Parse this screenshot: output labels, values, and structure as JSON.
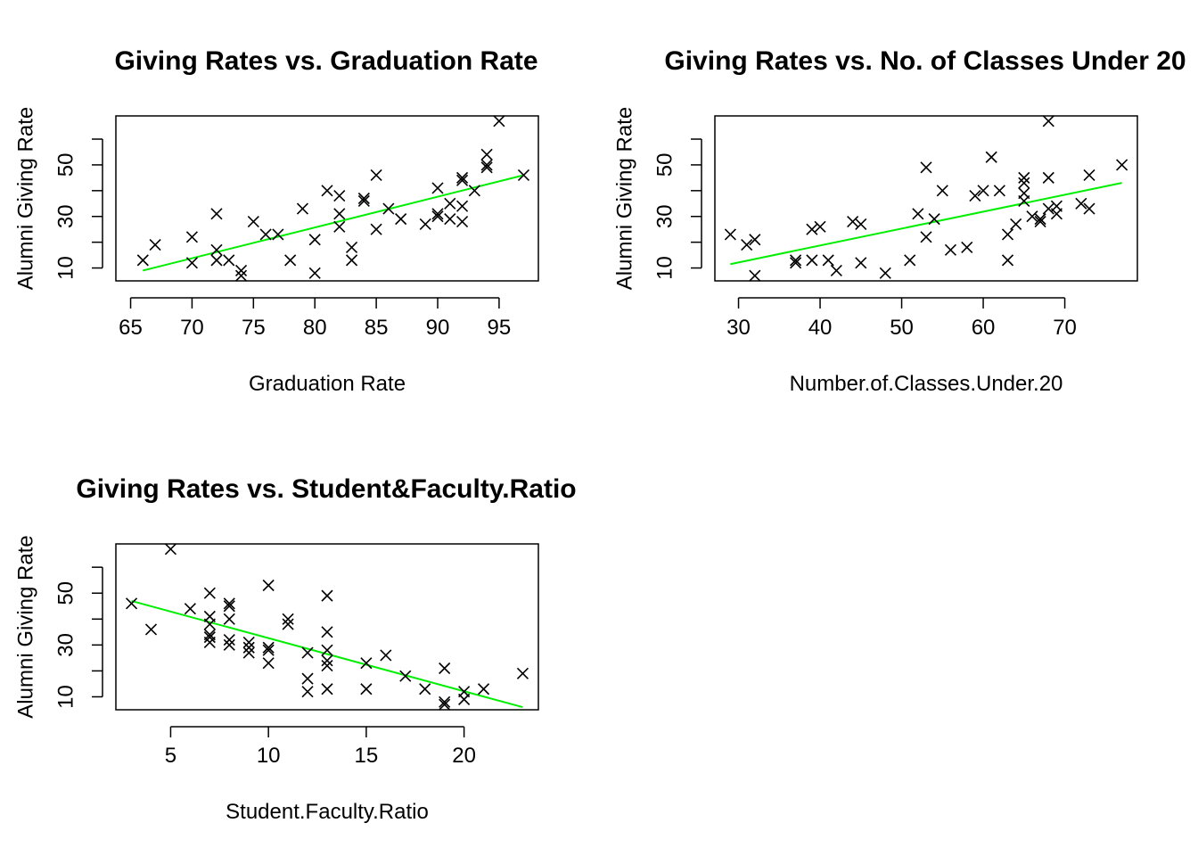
{
  "chart_data": [
    {
      "type": "scatter",
      "title": "Giving Rates vs. Graduation Rate",
      "xlabel": "Graduation Rate",
      "ylabel": "Alumni Giving Rate",
      "xlim": [
        63.8,
        98.2
      ],
      "ylim": [
        5,
        69
      ],
      "xticks": [
        65,
        70,
        75,
        80,
        85,
        90,
        95
      ],
      "yticks": [
        10,
        20,
        30,
        40,
        50,
        60
      ],
      "ytick_labels": [
        "10",
        "",
        "30",
        "",
        "50",
        ""
      ],
      "marker": "x",
      "fit_color": "#00ee00",
      "fit_line": {
        "x": [
          66,
          97
        ],
        "y": [
          9,
          46
        ]
      },
      "points": [
        [
          66,
          13
        ],
        [
          67,
          19
        ],
        [
          70,
          22
        ],
        [
          70,
          12
        ],
        [
          72,
          31
        ],
        [
          72,
          17
        ],
        [
          72,
          13
        ],
        [
          73,
          13
        ],
        [
          74,
          9
        ],
        [
          74,
          7
        ],
        [
          75,
          28
        ],
        [
          76,
          23
        ],
        [
          77,
          23
        ],
        [
          78,
          13
        ],
        [
          79,
          33
        ],
        [
          80,
          21
        ],
        [
          80,
          8
        ],
        [
          81,
          40
        ],
        [
          82,
          38
        ],
        [
          82,
          31
        ],
        [
          82,
          26
        ],
        [
          83,
          18
        ],
        [
          83,
          13
        ],
        [
          84,
          37
        ],
        [
          84,
          36
        ],
        [
          85,
          46
        ],
        [
          85,
          25
        ],
        [
          86,
          33
        ],
        [
          87,
          29
        ],
        [
          89,
          27
        ],
        [
          90,
          41
        ],
        [
          90,
          30
        ],
        [
          90,
          31
        ],
        [
          91,
          35
        ],
        [
          91,
          29
        ],
        [
          92,
          45
        ],
        [
          92,
          44
        ],
        [
          92,
          34
        ],
        [
          92,
          28
        ],
        [
          93,
          40
        ],
        [
          94,
          54
        ],
        [
          94,
          50
        ],
        [
          94,
          49
        ],
        [
          95,
          67
        ],
        [
          97,
          46
        ]
      ]
    },
    {
      "type": "scatter",
      "title": "Giving Rates vs. No. of Classes Under 20",
      "xlabel": "Number.of.Classes.Under.20",
      "ylabel": "Alumni Giving Rate",
      "xlim": [
        27.1,
        78.9
      ],
      "ylim": [
        5,
        69
      ],
      "xticks": [
        30,
        40,
        50,
        60,
        70
      ],
      "yticks": [
        10,
        20,
        30,
        40,
        50,
        60
      ],
      "ytick_labels": [
        "10",
        "",
        "30",
        "",
        "50",
        ""
      ],
      "marker": "x",
      "fit_color": "#00ee00",
      "fit_line": {
        "x": [
          29,
          77
        ],
        "y": [
          11.5,
          43
        ]
      },
      "points": [
        [
          29,
          23
        ],
        [
          31,
          19
        ],
        [
          32,
          21
        ],
        [
          32,
          7
        ],
        [
          37,
          13
        ],
        [
          37,
          12
        ],
        [
          39,
          13
        ],
        [
          39,
          25
        ],
        [
          40,
          26
        ],
        [
          41,
          13
        ],
        [
          42,
          9
        ],
        [
          44,
          28
        ],
        [
          45,
          27
        ],
        [
          45,
          12
        ],
        [
          48,
          8
        ],
        [
          51,
          13
        ],
        [
          52,
          31
        ],
        [
          53,
          49
        ],
        [
          53,
          22
        ],
        [
          54,
          29
        ],
        [
          55,
          40
        ],
        [
          56,
          17
        ],
        [
          58,
          18
        ],
        [
          59,
          38
        ],
        [
          60,
          40
        ],
        [
          61,
          53
        ],
        [
          62,
          40
        ],
        [
          63,
          23
        ],
        [
          63,
          13
        ],
        [
          64,
          27
        ],
        [
          65,
          45
        ],
        [
          65,
          43
        ],
        [
          65,
          39
        ],
        [
          65,
          36
        ],
        [
          66,
          30
        ],
        [
          67,
          28
        ],
        [
          67,
          29
        ],
        [
          68,
          67
        ],
        [
          68,
          45
        ],
        [
          68,
          33
        ],
        [
          69,
          31
        ],
        [
          69,
          34
        ],
        [
          72,
          35
        ],
        [
          73,
          46
        ],
        [
          73,
          33
        ],
        [
          77,
          50
        ]
      ]
    },
    {
      "type": "scatter",
      "title": "Giving Rates vs. Student&Faculty.Ratio",
      "xlabel": "Student.Faculty.Ratio",
      "ylabel": "Alumni Giving Rate",
      "xlim": [
        2.2,
        23.8
      ],
      "ylim": [
        5,
        69
      ],
      "xticks": [
        5,
        10,
        15,
        20
      ],
      "yticks": [
        10,
        20,
        30,
        40,
        50,
        60
      ],
      "ytick_labels": [
        "10",
        "",
        "30",
        "",
        "50",
        ""
      ],
      "marker": "x",
      "fit_color": "#00ee00",
      "fit_line": {
        "x": [
          3,
          23
        ],
        "y": [
          47,
          6
        ]
      },
      "points": [
        [
          3,
          46
        ],
        [
          4,
          36
        ],
        [
          5,
          67
        ],
        [
          6,
          44
        ],
        [
          7,
          50
        ],
        [
          7,
          41
        ],
        [
          7,
          38
        ],
        [
          7,
          34
        ],
        [
          7,
          33
        ],
        [
          7,
          31
        ],
        [
          8,
          46
        ],
        [
          8,
          45
        ],
        [
          8,
          40
        ],
        [
          8,
          32
        ],
        [
          8,
          30
        ],
        [
          9,
          31
        ],
        [
          9,
          29
        ],
        [
          9,
          27
        ],
        [
          10,
          53
        ],
        [
          10,
          29
        ],
        [
          10,
          28
        ],
        [
          10,
          23
        ],
        [
          11,
          40
        ],
        [
          11,
          38
        ],
        [
          12,
          27
        ],
        [
          12,
          17
        ],
        [
          12,
          12
        ],
        [
          13,
          49
        ],
        [
          13,
          35
        ],
        [
          13,
          28
        ],
        [
          13,
          24
        ],
        [
          13,
          22
        ],
        [
          13,
          13
        ],
        [
          15,
          23
        ],
        [
          15,
          13
        ],
        [
          16,
          26
        ],
        [
          17,
          18
        ],
        [
          18,
          13
        ],
        [
          19,
          21
        ],
        [
          19,
          8
        ],
        [
          19,
          7
        ],
        [
          20,
          12
        ],
        [
          20,
          9
        ],
        [
          21,
          13
        ],
        [
          23,
          19
        ]
      ]
    }
  ]
}
